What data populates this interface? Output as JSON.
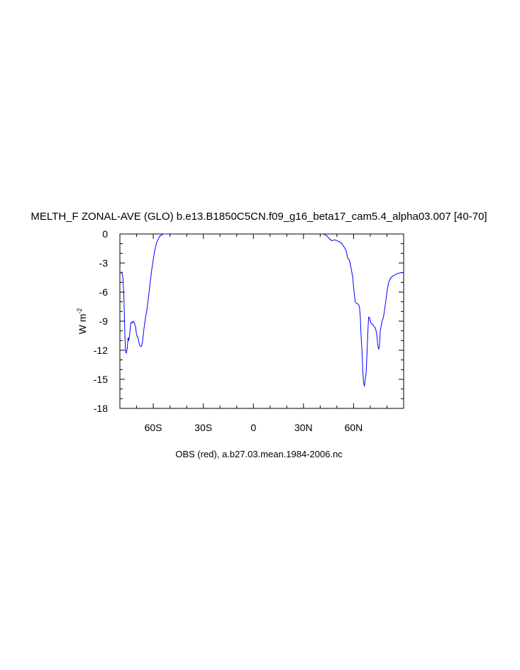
{
  "chart_data": {
    "type": "line",
    "title": "MELTH_F ZONAL-AVE (GLO) b.e13.B1850C5CN.f09_g16_beta17_cam5.4_alpha03.007 [40-70]",
    "ylabel": "W m",
    "ylabel_superscript": "-2",
    "caption": "OBS (red), a.b27.03.mean.1984-2006.nc",
    "xlim": [
      -80,
      90
    ],
    "ylim": [
      -18,
      0
    ],
    "x_ticks": [
      {
        "value": -60,
        "label": "60S"
      },
      {
        "value": -30,
        "label": "30S"
      },
      {
        "value": 0,
        "label": "0"
      },
      {
        "value": 30,
        "label": "30N"
      },
      {
        "value": 60,
        "label": "60N"
      }
    ],
    "y_ticks": [
      {
        "value": 0,
        "label": "0"
      },
      {
        "value": -3,
        "label": "-3"
      },
      {
        "value": -6,
        "label": "-6"
      },
      {
        "value": -9,
        "label": "-9"
      },
      {
        "value": -12,
        "label": "-12"
      },
      {
        "value": -15,
        "label": "-15"
      },
      {
        "value": -18,
        "label": "-18"
      }
    ],
    "grid": false,
    "series": [
      {
        "color": "#0000ff",
        "x": [
          -78.8,
          -78.2,
          -77.6,
          -77.1,
          -76.6,
          -76.1,
          -75.6,
          -75.1,
          -74.6,
          -74.1,
          -73.6,
          -73.1,
          -72.6,
          -72.1,
          -71.6,
          -71.1,
          -70.6,
          -70.1,
          -69.6,
          -69.1,
          -68.6,
          -68.1,
          -67.6,
          -67.1,
          -66.6,
          -66.1,
          -65.6,
          -65.1,
          -64.6,
          -64.0,
          -63.5,
          -63.0,
          -62.5,
          -62.0,
          -61.0,
          -60.0,
          -59.0,
          -58.0,
          -57.0,
          -56.0,
          -55.0,
          -54.0,
          -53.0,
          -52.0,
          -51.5,
          -51.0,
          42.0,
          44.0,
          45.5,
          47.0,
          48.5,
          50.0,
          51.5,
          53.0,
          54.5,
          55.5,
          56.5,
          57.5,
          58.5,
          59.5,
          60.0,
          60.5,
          61.0,
          61.5,
          62.0,
          62.5,
          63.0,
          63.5,
          64.0,
          64.5,
          65.0,
          65.5,
          66.0,
          66.5,
          67.0,
          67.5,
          68.0,
          68.5,
          69.0,
          69.5,
          70.0,
          70.5,
          71.0,
          71.5,
          72.0,
          72.5,
          73.0,
          73.5,
          74.0,
          74.5,
          75.0,
          75.5,
          76.0,
          76.5,
          77.0,
          77.5,
          78.0,
          79.0,
          80.0,
          81.0,
          82.0,
          83.0,
          84.0,
          85.0,
          86.0,
          87.0,
          88.0,
          89.0
        ],
        "y": [
          -3.9,
          -4.5,
          -6.5,
          -10.0,
          -12.2,
          -12.3,
          -11.8,
          -10.7,
          -11.0,
          -10.3,
          -9.3,
          -9.1,
          -9.2,
          -9.0,
          -9.1,
          -9.3,
          -9.6,
          -10.3,
          -10.6,
          -10.7,
          -11.2,
          -11.5,
          -11.6,
          -11.6,
          -11.3,
          -10.6,
          -9.8,
          -9.2,
          -8.6,
          -8.0,
          -7.4,
          -6.7,
          -6.0,
          -5.2,
          -3.8,
          -2.6,
          -1.6,
          -0.9,
          -0.5,
          -0.2,
          -0.1,
          0.0,
          0.0,
          0.0,
          0.0,
          0.0,
          0.0,
          -0.2,
          -0.5,
          -0.7,
          -0.6,
          -0.7,
          -0.8,
          -1.0,
          -1.4,
          -1.7,
          -2.5,
          -2.7,
          -3.5,
          -4.5,
          -5.5,
          -6.3,
          -7.0,
          -7.1,
          -7.2,
          -7.2,
          -7.3,
          -7.5,
          -8.5,
          -10.5,
          -12.0,
          -14.0,
          -15.4,
          -15.7,
          -15.0,
          -14.4,
          -12.5,
          -10.3,
          -8.6,
          -8.6,
          -9.0,
          -9.2,
          -9.3,
          -9.3,
          -9.5,
          -9.6,
          -9.7,
          -10.0,
          -10.5,
          -11.5,
          -11.9,
          -11.6,
          -10.0,
          -9.5,
          -9.0,
          -8.8,
          -8.5,
          -7.3,
          -6.0,
          -5.0,
          -4.6,
          -4.4,
          -4.3,
          -4.2,
          -4.1,
          -4.05,
          -4.0,
          -4.0
        ]
      }
    ]
  }
}
